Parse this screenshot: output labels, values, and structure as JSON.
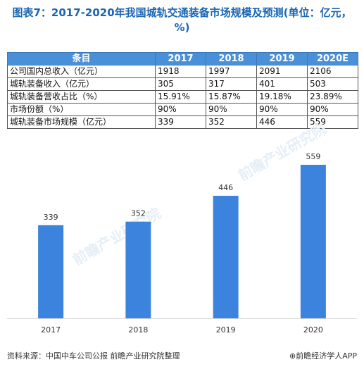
{
  "title": "图表7：2017-2020年我国城轨交通装备市场规模及预测(单位：亿元，%)",
  "table": {
    "header": [
      "条目",
      "2017",
      "2018",
      "2019",
      "2020E"
    ],
    "rows": [
      [
        "公司国内总收入（亿元）",
        "1918",
        "1997",
        "2091",
        "2106"
      ],
      [
        "城轨装备收入（亿元）",
        "305",
        "317",
        "401",
        "503"
      ],
      [
        "城轨装备营收占比（%）",
        "15.91%",
        "15.87%",
        "19.18%",
        "23.89%"
      ],
      [
        "市场份额（%）",
        "90%",
        "90%",
        "90%",
        "90%"
      ],
      [
        "城轨装备市场规模（亿元）",
        "339",
        "352",
        "446",
        "559"
      ]
    ]
  },
  "chart_data": {
    "type": "bar",
    "categories": [
      "2017",
      "2018",
      "2019",
      "2020"
    ],
    "values": [
      339,
      352,
      446,
      559
    ],
    "title": "",
    "xlabel": "",
    "ylabel": "",
    "ylim": [
      0,
      600
    ],
    "grid": false,
    "bar_color": "#3b83dd"
  },
  "source": "资料来源：中国中车公司公报 前瞻产业研究院整理",
  "brand": "⊕前瞻经济学人APP",
  "watermark": "前瞻产业研究院"
}
